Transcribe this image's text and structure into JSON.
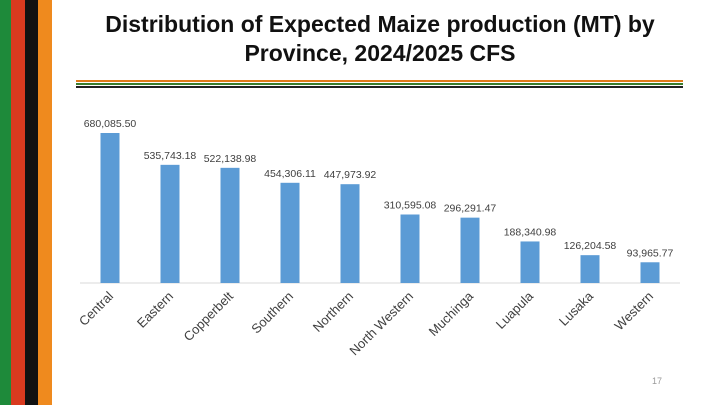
{
  "slide": {
    "title_line1": "Distribution of Expected Maize production (MT) by",
    "title_line2": "Province, 2024/2025 CFS",
    "page_number": "17"
  },
  "colors": {
    "bar": "#5B9BD5",
    "axis": "#d9d9d9",
    "flag_green": "#1e8a3a",
    "flag_red": "#d93a1f",
    "flag_black": "#111111",
    "flag_orange": "#ef8a1e",
    "divider_orange": "#e07b1a",
    "divider_green": "#3a7d2c",
    "divider_black": "#222222"
  },
  "chart_data": {
    "type": "bar",
    "categories": [
      "Central",
      "Eastern",
      "Copperbelt",
      "Southern",
      "Northern",
      "North Western",
      "Muchinga",
      "Luapula",
      "Lusaka",
      "Western"
    ],
    "values": [
      680085.5,
      535743.18,
      522138.98,
      454306.11,
      447973.92,
      310595.08,
      296291.47,
      188340.98,
      126204.58,
      93965.77
    ],
    "data_labels": [
      "680,085.50",
      "535,743.18",
      "522,138.98",
      "454,306.11",
      "447,973.92",
      "310,595.08",
      "296,291.47",
      "188,340.98",
      "126,204.58",
      "93,965.77"
    ],
    "title": "",
    "xlabel": "",
    "ylabel": "",
    "ylim": [
      0,
      680085.5
    ],
    "grid": false,
    "legend": "none"
  }
}
